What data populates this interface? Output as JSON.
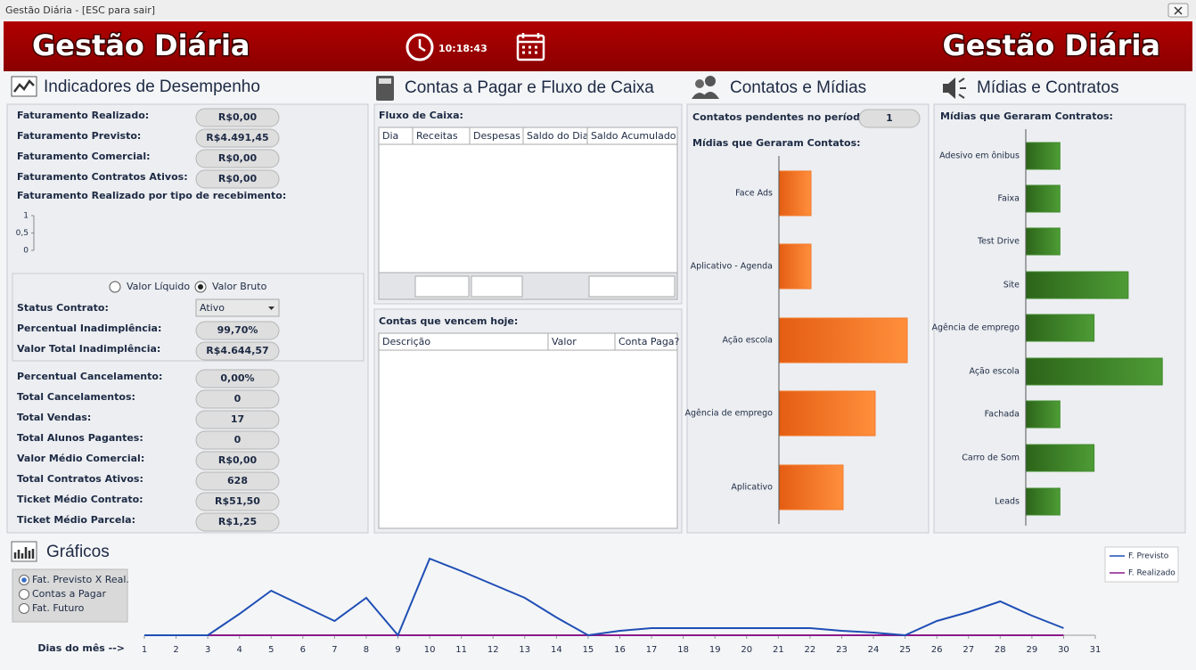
{
  "window": {
    "title": "Gestão Diária - [ESC para sair]"
  },
  "header": {
    "title_left": "Gestão Diária",
    "time": "10:18:43",
    "title_right": "Gestão Diária"
  },
  "indicadores": {
    "title": "Indicadores de Desempenho",
    "rows_top": [
      {
        "label": "Faturamento Realizado:",
        "value": "R$0,00"
      },
      {
        "label": "Faturamento Previsto:",
        "value": "R$4.491,45"
      },
      {
        "label": "Faturamento Comercial:",
        "value": "R$0,00"
      },
      {
        "label": "Faturamento Contratos Ativos:",
        "value": "R$0,00"
      }
    ],
    "chart": {
      "type": "bar",
      "title": "Faturamento Realizado por tipo de recebimento:",
      "ylim": [
        0,
        1
      ],
      "yticks": [
        0,
        {
          "value": 0.5,
          "label": "0,5"
        },
        1
      ]
    },
    "radio_options": [
      "Valor Líquido",
      "Valor Bruto"
    ],
    "radio_selected": 1,
    "status": {
      "label": "Status Contrato:",
      "value": "Ativo"
    },
    "rows_mid": [
      {
        "label": "Percentual Inadimplência:",
        "value": "99,70%"
      },
      {
        "label": "Valor Total Inadimplência:",
        "value": "R$4.644,57"
      }
    ],
    "rows_bottom": [
      {
        "label": "Percentual Cancelamento:",
        "value": "0,00%"
      },
      {
        "label": "Total Cancelamentos:",
        "value": "0"
      },
      {
        "label": "Total Vendas:",
        "value": "17"
      },
      {
        "label": "Total Alunos Pagantes:",
        "value": "0"
      },
      {
        "label": "Valor Médio Comercial:",
        "value": "R$0,00"
      },
      {
        "label": "Total Contratos Ativos:",
        "value": "628"
      },
      {
        "label": "Ticket Médio Contrato:",
        "value": "R$51,50"
      },
      {
        "label": "Ticket Médio Parcela:",
        "value": "R$1,25"
      }
    ]
  },
  "contas": {
    "title": "Contas a Pagar e Fluxo de Caixa",
    "fluxo": {
      "label": "Fluxo de Caixa:",
      "columns": [
        "Dia",
        "Receitas",
        "Despesas",
        "Saldo do Dia",
        "Saldo Acumulado"
      ]
    },
    "hoje": {
      "label": "Contas que vencem hoje:",
      "columns": [
        "Descrição",
        "Valor",
        "Conta Paga?"
      ]
    }
  },
  "contatos": {
    "title": "Contatos e Mídias",
    "pending_label": "Contatos pendentes no período:",
    "pending_value": "1",
    "chart": {
      "type": "bar",
      "orientation": "horizontal",
      "title": "Mídias que Geraram Contatos:",
      "categories": [
        "Face Ads",
        "Aplicativo - Agenda",
        "Ação escola",
        "Agência de emprego",
        "Aplicativo"
      ],
      "values": [
        1,
        1,
        4,
        3,
        2
      ],
      "color": "#f47a2a"
    }
  },
  "midias": {
    "title": "Mídias e Contratos",
    "chart": {
      "type": "bar",
      "orientation": "horizontal",
      "title": "Mídias que Geraram Contratos:",
      "categories": [
        "Adesivo em ônibus",
        "Faixa",
        "Test Drive",
        "Site",
        "Agência de emprego",
        "Ação escola",
        "Fachada",
        "Carro de Som",
        "Leads"
      ],
      "values": [
        1,
        1,
        1,
        3,
        2,
        4,
        1,
        2,
        1
      ],
      "color": "#3f8a2b"
    }
  },
  "graficos": {
    "title": "Gráficos",
    "options": [
      "Fat. Previsto X Real.",
      "Contas a Pagar",
      "Fat. Futuro"
    ],
    "selected": 0,
    "chart": {
      "type": "line",
      "x_label": "Dias do mês -->",
      "x": [
        1,
        2,
        3,
        4,
        5,
        6,
        7,
        8,
        9,
        10,
        11,
        12,
        13,
        14,
        15,
        16,
        17,
        18,
        19,
        20,
        21,
        22,
        23,
        24,
        25,
        26,
        27,
        28,
        29,
        30,
        31
      ],
      "xlim": [
        1,
        31
      ],
      "xticks": [
        1,
        2,
        3,
        4,
        5,
        6,
        7,
        8,
        9,
        10,
        11,
        12,
        13,
        14,
        15,
        16,
        17,
        18,
        19,
        20,
        21,
        22,
        23,
        24,
        25,
        26,
        27,
        28,
        29,
        30,
        31
      ],
      "ylim": [
        0,
        100
      ],
      "legend": "top-right",
      "series": [
        {
          "name": "F. Previsto",
          "color": "#1f4fb5",
          "values": [
            0,
            0,
            0,
            24,
            50,
            33,
            16,
            42,
            0,
            86,
            72,
            57,
            42,
            20,
            0,
            5,
            8,
            8,
            8,
            8,
            8,
            8,
            5,
            3,
            0,
            16,
            26,
            38,
            22,
            8,
            null
          ]
        },
        {
          "name": "F. Realizado",
          "color": "#8b1a8b",
          "values": [
            0,
            0,
            0,
            0,
            0,
            0,
            0,
            0,
            0,
            0,
            0,
            0,
            0,
            0,
            0,
            0,
            0,
            0,
            0,
            0,
            0,
            0,
            0,
            0,
            0,
            0,
            0,
            0,
            0,
            0,
            null
          ]
        }
      ]
    }
  }
}
